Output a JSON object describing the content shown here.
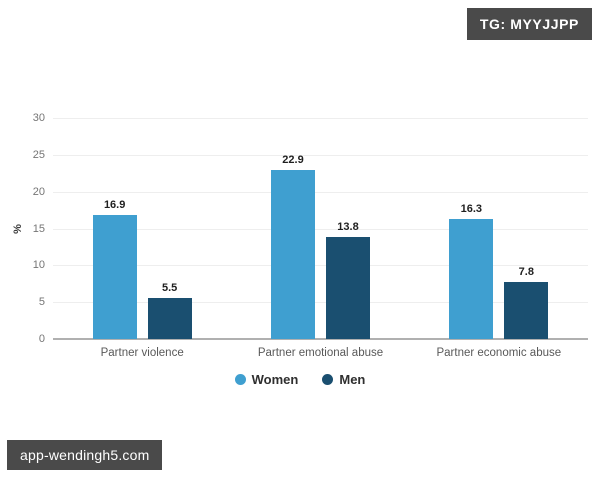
{
  "badges": {
    "top_right_label": "TG: MYYJJPP",
    "bottom_left_label": "app-wendingh5.com",
    "background": "#4a4a4a",
    "text_color": "#ffffff"
  },
  "chart_data": {
    "type": "bar",
    "categories": [
      "Partner violence",
      "Partner emotional abuse",
      "Partner economic abuse"
    ],
    "series": [
      {
        "name": "Women",
        "color": "#3f9fd0",
        "values": [
          16.9,
          22.9,
          16.3
        ]
      },
      {
        "name": "Men",
        "color": "#1a4f70",
        "values": [
          5.5,
          13.8,
          7.8
        ]
      }
    ],
    "title": "",
    "xlabel": "",
    "ylabel": "%",
    "ylim": [
      0,
      30
    ],
    "yticks": [
      0,
      5,
      10,
      15,
      20,
      25,
      30
    ],
    "grid": true,
    "value_labels": true,
    "legend_position": "bottom",
    "gridline_color": "#eeeeee",
    "baseline_color": "#b0b0b0",
    "tick_color": "#757575",
    "category_color": "#595959",
    "value_label_color": "#1f1f1f"
  }
}
